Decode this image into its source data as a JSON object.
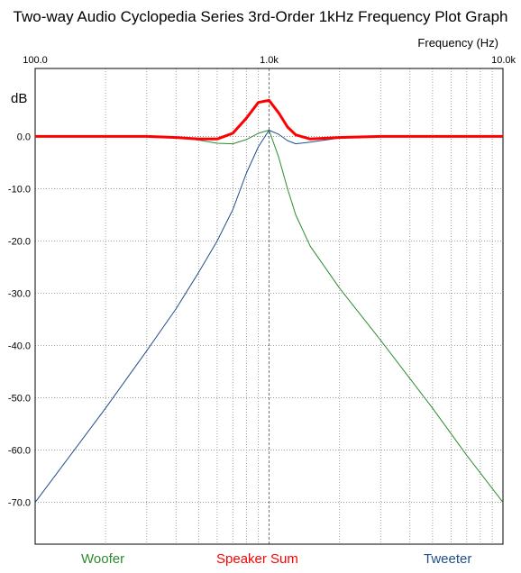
{
  "chart_data": {
    "type": "line",
    "title": "Two-way Audio Cyclopedia Series 3rd-Order 1kHz Frequency Plot Graph",
    "xlabel": "Frequency  (Hz)",
    "ylabel": "dB",
    "xscale": "log",
    "xlim": [
      100,
      10000
    ],
    "ylim": [
      -78,
      13
    ],
    "grid": true,
    "x_tick_labels": [
      {
        "value": 100,
        "label": "100.0"
      },
      {
        "value": 1000,
        "label": "1.0k"
      },
      {
        "value": 10000,
        "label": "10.0k"
      }
    ],
    "y_tick_labels": [
      {
        "value": 0,
        "label": "0.0"
      },
      {
        "value": -10,
        "label": "-10.0"
      },
      {
        "value": -20,
        "label": "-20.0"
      },
      {
        "value": -30,
        "label": "-30.0"
      },
      {
        "value": -40,
        "label": "-40.0"
      },
      {
        "value": -50,
        "label": "-50.0"
      },
      {
        "value": -60,
        "label": "-60.0"
      },
      {
        "value": -70,
        "label": "-70.0"
      }
    ],
    "series": [
      {
        "name": "Woofer",
        "color": "#2e8b2e",
        "x": [
          100,
          200,
          300,
          400,
          500,
          600,
          700,
          800,
          900,
          1000,
          1100,
          1200,
          1300,
          1500,
          2000,
          3000,
          5000,
          7000,
          10000
        ],
        "y": [
          0,
          0,
          0,
          -0.2,
          -0.7,
          -1.3,
          -1.4,
          -0.6,
          0.6,
          1.2,
          -4,
          -10,
          -15,
          -21,
          -29,
          -39,
          -52,
          -61,
          -70
        ]
      },
      {
        "name": "Tweeter",
        "color": "#1f4f8a",
        "x": [
          100,
          200,
          300,
          400,
          500,
          600,
          700,
          800,
          900,
          1000,
          1100,
          1200,
          1300,
          1500,
          2000,
          3000,
          5000,
          10000
        ],
        "y": [
          -70,
          -52,
          -41,
          -33,
          -26,
          -20,
          -14,
          -7,
          -2,
          1.2,
          0.4,
          -0.8,
          -1.4,
          -1.1,
          -0.3,
          0,
          0,
          0
        ]
      },
      {
        "name": "Speaker Sum",
        "color": "#ff0000",
        "x": [
          100,
          300,
          400,
          500,
          600,
          700,
          800,
          900,
          1000,
          1100,
          1200,
          1300,
          1500,
          2000,
          3000,
          10000
        ],
        "y": [
          0,
          0,
          -0.2,
          -0.5,
          -0.5,
          0.6,
          3.5,
          6.5,
          6.9,
          4.5,
          1.8,
          0.3,
          -0.5,
          -0.2,
          0,
          0
        ]
      }
    ]
  }
}
